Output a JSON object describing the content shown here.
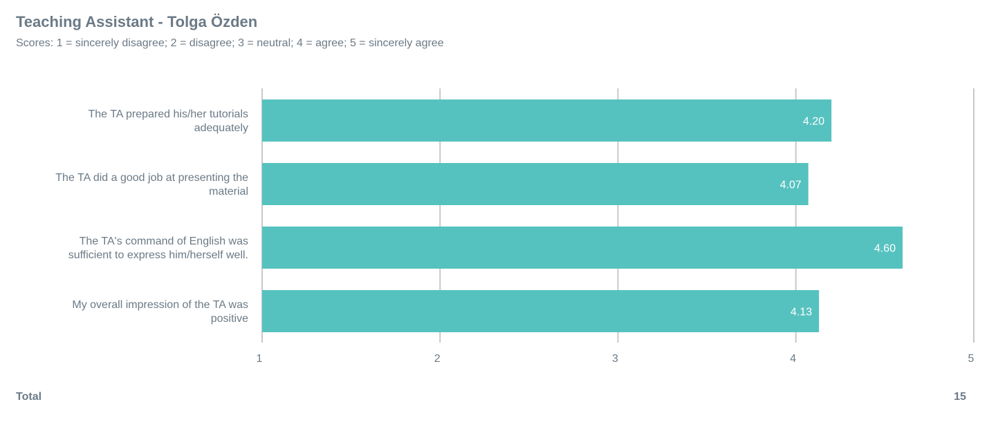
{
  "header": {
    "title": "Teaching Assistant - Tolga Özden",
    "subtitle": "Scores: 1 = sincerely disagree; 2 = disagree; 3 = neutral; 4 = agree; 5 = sincerely agree"
  },
  "footer": {
    "total_label": "Total",
    "total_value": "15"
  },
  "colors": {
    "bar": "#56c2bf",
    "grid": "#c8c8c8",
    "text": "#6b7a86",
    "bar_label": "#ffffff"
  },
  "chart_data": {
    "type": "bar",
    "orientation": "horizontal",
    "categories": [
      [
        "The TA prepared his/her tutorials",
        "adequately"
      ],
      [
        "The TA did a good job at presenting the",
        "material"
      ],
      [
        "The TA's command of English was",
        "sufficient to express him/herself well."
      ],
      [
        "My overall impression of the TA was",
        "positive"
      ]
    ],
    "values": [
      4.2,
      4.07,
      4.6,
      4.13
    ],
    "value_labels": [
      "4.20",
      "4.07",
      "4.60",
      "4.13"
    ],
    "xlim": [
      1,
      5
    ],
    "x_ticks": [
      "1",
      "2",
      "3",
      "4",
      "5"
    ],
    "grid": true
  }
}
